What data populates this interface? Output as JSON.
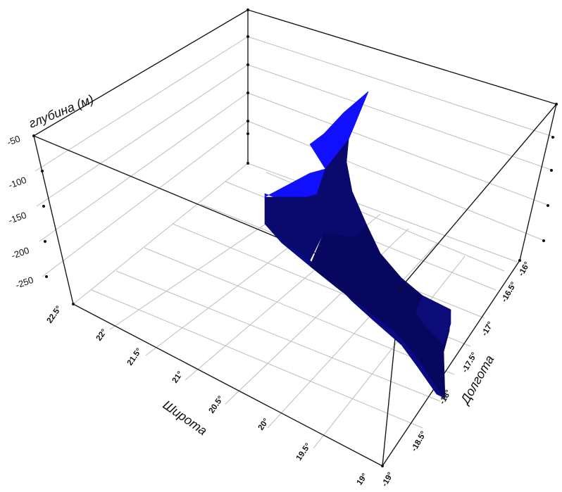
{
  "chart_data": {
    "type": "surface3d",
    "title": "",
    "zlabel": "глубина (м)",
    "xlabel": "Широта",
    "ylabel": "Долгота",
    "z_ticks": [
      "-50",
      "-100",
      "-150",
      "-200",
      "-250"
    ],
    "x_ticks": [
      "22.5°",
      "22°",
      "21.5°",
      "21°",
      "20.5°",
      "20°",
      "19.5°",
      "19°"
    ],
    "y_ticks": [
      "-19°",
      "-18.5°",
      "-18°",
      "-17.5°",
      "-17°",
      "-16.5°",
      "-16°"
    ],
    "xlim": [
      19,
      22.5
    ],
    "ylim": [
      -19,
      -16
    ],
    "zlim": [
      -270,
      -50
    ],
    "grid": true,
    "surface_color": "#1010ff",
    "shade_color": "#0a0a6e"
  }
}
